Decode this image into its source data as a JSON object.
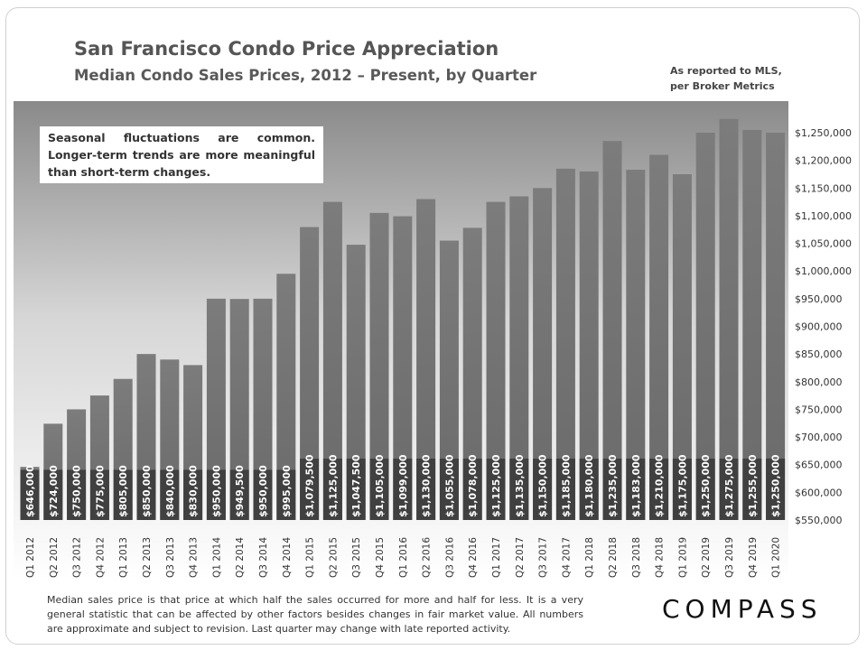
{
  "header": {
    "title": "San Francisco Condo Price Appreciation",
    "subtitle": "Median Condo Sales Prices, 2012 – Present, by Quarter",
    "source_line1": "As reported to MLS,",
    "source_line2": "per Broker Metrics"
  },
  "note": "Seasonal fluctuations are common. Longer-term trends are more meaningful than short-term changes.",
  "footer": "Median sales price is that price at which half the sales occurred for more and half for less. It is a very general statistic that can be affected by other factors besides changes in fair market value. All numbers are approximate and subject to revision. Last quarter may change with late reported activity.",
  "logo": "COMPASS",
  "colors": {
    "bar": "#7a7a7a",
    "bar_label_bg": "#404040",
    "plot_bg_top": "#8c8c8c",
    "plot_bg_bottom": "#ffffff"
  },
  "chart_data": {
    "type": "bar",
    "title": "San Francisco Condo Price Appreciation",
    "subtitle": "Median Condo Sales Prices, 2012 – Present, by Quarter",
    "ylim": [
      550000,
      1250000
    ],
    "y_axis_position": "right",
    "grid": false,
    "yticks": [
      550000,
      600000,
      650000,
      700000,
      750000,
      800000,
      850000,
      900000,
      950000,
      1000000,
      1050000,
      1100000,
      1150000,
      1200000,
      1250000
    ],
    "ytick_labels": [
      "$550,000",
      "$600,000",
      "$650,000",
      "$700,000",
      "$750,000",
      "$800,000",
      "$850,000",
      "$900,000",
      "$950,000",
      "$1,000,000",
      "$1,050,000",
      "$1,100,000",
      "$1,150,000",
      "$1,200,000",
      "$1,250,000"
    ],
    "categories": [
      "Q1 2012",
      "Q2 2012",
      "Q3 2012",
      "Q4 2012",
      "Q1 2013",
      "Q2 2013",
      "Q3 2013",
      "Q4 2013",
      "Q1 2014",
      "Q2 2014",
      "Q3 2014",
      "Q4 2014",
      "Q1 2015",
      "Q2 2015",
      "Q3 2015",
      "Q4 2015",
      "Q1 2016",
      "Q2 2016",
      "Q3 2016",
      "Q4 2016",
      "Q1 2017",
      "Q2 2017",
      "Q3 2017",
      "Q4 2017",
      "Q1 2018",
      "Q2 2018",
      "Q3 2018",
      "Q4 2018",
      "Q1 2019",
      "Q2 2019",
      "Q3 2019",
      "Q4 2019",
      "Q1 2020"
    ],
    "values": [
      646000,
      724000,
      750000,
      775000,
      805000,
      850000,
      840000,
      830000,
      950000,
      949500,
      950000,
      995000,
      1079500,
      1125000,
      1047500,
      1105000,
      1099000,
      1130000,
      1055000,
      1078000,
      1125000,
      1135000,
      1150000,
      1185000,
      1180000,
      1235000,
      1183000,
      1210000,
      1175000,
      1250000,
      1275000,
      1255000,
      1250000
    ],
    "data_labels": [
      "$646,000",
      "$724,000",
      "$750,000",
      "$775,000",
      "$805,000",
      "$850,000",
      "$840,000",
      "$830,000",
      "$950,000",
      "$949,500",
      "$950,000",
      "$995,000",
      "$1,079,500",
      "$1,125,000",
      "$1,047,500",
      "$1,105,000",
      "$1,099,000",
      "$1,130,000",
      "$1,055,000",
      "$1,078,000",
      "$1,125,000",
      "$1,135,000",
      "$1,150,000",
      "$1,185,000",
      "$1,180,000",
      "$1,235,000",
      "$1,183,000",
      "$1,210,000",
      "$1,175,000",
      "$1,250,000",
      "$1,275,000",
      "$1,255,000",
      "$1,250,000"
    ]
  }
}
